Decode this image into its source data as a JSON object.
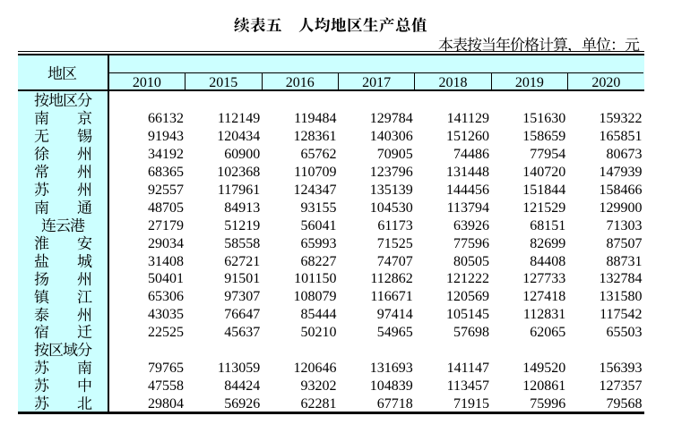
{
  "title": "续表五　人均地区生产总值",
  "note": "本表按当年价格计算，单位：元",
  "table": {
    "region_col_header": "地区",
    "year_headers": [
      "2010",
      "2015",
      "2016",
      "2017",
      "2018",
      "2019",
      "2020"
    ],
    "rows": [
      {
        "label": "按地区分",
        "kind": "group",
        "values": []
      },
      {
        "label": "南京",
        "kind": "data",
        "values": [
          66132,
          112149,
          119484,
          129784,
          141129,
          151630,
          159322
        ]
      },
      {
        "label": "无锡",
        "kind": "data",
        "values": [
          91943,
          120434,
          128361,
          140306,
          151260,
          158659,
          165851
        ]
      },
      {
        "label": "徐州",
        "kind": "data",
        "values": [
          34192,
          60900,
          65762,
          70905,
          74486,
          77954,
          80673
        ]
      },
      {
        "label": "常州",
        "kind": "data",
        "values": [
          68365,
          102368,
          110709,
          123796,
          131448,
          140720,
          147939
        ]
      },
      {
        "label": "苏州",
        "kind": "data",
        "values": [
          92557,
          117961,
          124347,
          135139,
          144456,
          151844,
          158466
        ]
      },
      {
        "label": "南通",
        "kind": "data",
        "values": [
          48705,
          84913,
          93155,
          104530,
          113794,
          121529,
          129900
        ]
      },
      {
        "label": "连云港",
        "kind": "data",
        "values": [
          27179,
          51219,
          56041,
          61173,
          63926,
          68151,
          71303
        ]
      },
      {
        "label": "淮安",
        "kind": "data",
        "values": [
          29034,
          58558,
          65993,
          71525,
          77596,
          82699,
          87507
        ]
      },
      {
        "label": "盐城",
        "kind": "data",
        "values": [
          31408,
          62721,
          68227,
          74707,
          80505,
          84408,
          88731
        ]
      },
      {
        "label": "扬州",
        "kind": "data",
        "values": [
          50401,
          91501,
          101150,
          112862,
          121222,
          127733,
          132784
        ]
      },
      {
        "label": "镇江",
        "kind": "data",
        "values": [
          65306,
          97307,
          108079,
          116671,
          120569,
          127418,
          131580
        ]
      },
      {
        "label": "泰州",
        "kind": "data",
        "values": [
          43035,
          76647,
          85444,
          97414,
          105145,
          112831,
          117542
        ]
      },
      {
        "label": "宿迁",
        "kind": "data",
        "values": [
          22525,
          45637,
          50210,
          54965,
          57698,
          62065,
          65503
        ]
      },
      {
        "label": "按区域分",
        "kind": "group",
        "values": []
      },
      {
        "label": "苏南",
        "kind": "data",
        "values": [
          79765,
          113059,
          120646,
          131693,
          141147,
          149520,
          156393
        ]
      },
      {
        "label": "苏中",
        "kind": "data",
        "values": [
          47558,
          84424,
          93202,
          104839,
          113457,
          120861,
          127357
        ]
      },
      {
        "label": "苏北",
        "kind": "data",
        "values": [
          29804,
          56926,
          62281,
          67718,
          71915,
          75996,
          79568
        ]
      }
    ]
  },
  "colors": {
    "page_bg": "#ffffff",
    "header_bg": "#ccffff",
    "region_col_bg": "#ccffff",
    "grid": "#000000",
    "text": "#000000"
  },
  "chart_data": {
    "type": "table",
    "title": "续表五　人均地区生产总值",
    "note": "本表按当年价格计算，单位：元",
    "columns": [
      "地区",
      "2010",
      "2015",
      "2016",
      "2017",
      "2018",
      "2019",
      "2020"
    ],
    "rows": [
      [
        "按地区分",
        "",
        "",
        "",
        "",
        "",
        "",
        ""
      ],
      [
        "南京",
        66132,
        112149,
        119484,
        129784,
        141129,
        151630,
        159322
      ],
      [
        "无锡",
        91943,
        120434,
        128361,
        140306,
        151260,
        158659,
        165851
      ],
      [
        "徐州",
        34192,
        60900,
        65762,
        70905,
        74486,
        77954,
        80673
      ],
      [
        "常州",
        68365,
        102368,
        110709,
        123796,
        131448,
        140720,
        147939
      ],
      [
        "苏州",
        92557,
        117961,
        124347,
        135139,
        144456,
        151844,
        158466
      ],
      [
        "南通",
        48705,
        84913,
        93155,
        104530,
        113794,
        121529,
        129900
      ],
      [
        "连云港",
        27179,
        51219,
        56041,
        61173,
        63926,
        68151,
        71303
      ],
      [
        "淮安",
        29034,
        58558,
        65993,
        71525,
        77596,
        82699,
        87507
      ],
      [
        "盐城",
        31408,
        62721,
        68227,
        74707,
        80505,
        84408,
        88731
      ],
      [
        "扬州",
        50401,
        91501,
        101150,
        112862,
        121222,
        127733,
        132784
      ],
      [
        "镇江",
        65306,
        97307,
        108079,
        116671,
        120569,
        127418,
        131580
      ],
      [
        "泰州",
        43035,
        76647,
        85444,
        97414,
        105145,
        112831,
        117542
      ],
      [
        "宿迁",
        22525,
        45637,
        50210,
        54965,
        57698,
        62065,
        65503
      ],
      [
        "按区域分",
        "",
        "",
        "",
        "",
        "",
        "",
        ""
      ],
      [
        "苏南",
        79765,
        113059,
        120646,
        131693,
        141147,
        149520,
        156393
      ],
      [
        "苏中",
        47558,
        84424,
        93202,
        104839,
        113457,
        120861,
        127357
      ],
      [
        "苏北",
        29804,
        56926,
        62281,
        67718,
        71915,
        75996,
        79568
      ]
    ]
  }
}
